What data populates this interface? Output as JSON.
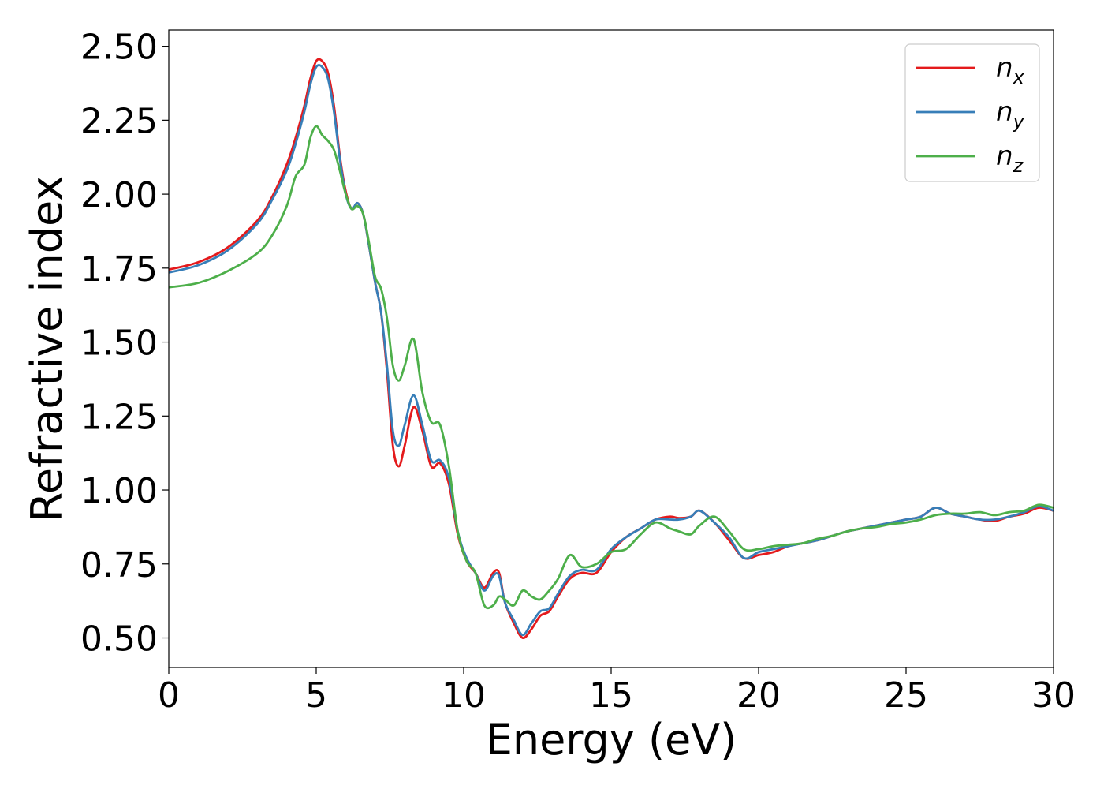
{
  "chart_data": {
    "type": "line",
    "title": "",
    "xlabel": "Energy (eV)",
    "ylabel": "Refractive index",
    "xlim": [
      0,
      30
    ],
    "ylim": [
      0.4,
      2.555
    ],
    "xticks": [
      0,
      5,
      10,
      15,
      20,
      25,
      30
    ],
    "xtick_labels": [
      "0",
      "5",
      "10",
      "15",
      "20",
      "25",
      "30"
    ],
    "yticks": [
      0.5,
      0.75,
      1.0,
      1.25,
      1.5,
      1.75,
      2.0,
      2.25,
      2.5
    ],
    "ytick_labels": [
      "0.50",
      "0.75",
      "1.00",
      "1.25",
      "1.50",
      "1.75",
      "2.00",
      "2.25",
      "2.50"
    ],
    "grid": false,
    "legend_position": "top-right",
    "series": [
      {
        "name": "n_x",
        "legend_main": "n",
        "legend_sub": "x",
        "color": "#e41a1c",
        "x": [
          0,
          1,
          2,
          3,
          3.5,
          4,
          4.3,
          4.6,
          4.8,
          5.0,
          5.2,
          5.4,
          5.6,
          5.8,
          6.0,
          6.2,
          6.4,
          6.6,
          6.8,
          7.0,
          7.2,
          7.4,
          7.6,
          7.8,
          8.0,
          8.3,
          8.6,
          8.9,
          9.2,
          9.5,
          9.8,
          10.1,
          10.4,
          10.7,
          11.0,
          11.2,
          11.4,
          11.7,
          12.0,
          12.3,
          12.6,
          12.9,
          13.2,
          13.6,
          14.0,
          14.5,
          15.0,
          15.5,
          16.0,
          16.5,
          17.0,
          17.3,
          17.7,
          18.0,
          18.5,
          19.0,
          19.5,
          20.0,
          20.5,
          21.0,
          21.5,
          22.0,
          22.5,
          23.0,
          23.5,
          24.0,
          24.5,
          25.0,
          25.5,
          26.0,
          26.5,
          27.0,
          27.5,
          28.0,
          28.5,
          29.0,
          29.5,
          30.0
        ],
        "y": [
          1.745,
          1.77,
          1.82,
          1.91,
          1.99,
          2.1,
          2.19,
          2.3,
          2.39,
          2.45,
          2.45,
          2.41,
          2.3,
          2.13,
          2.01,
          1.95,
          1.97,
          1.93,
          1.82,
          1.7,
          1.6,
          1.4,
          1.15,
          1.08,
          1.15,
          1.28,
          1.2,
          1.08,
          1.09,
          1.02,
          0.85,
          0.76,
          0.72,
          0.67,
          0.72,
          0.72,
          0.62,
          0.55,
          0.5,
          0.53,
          0.575,
          0.59,
          0.64,
          0.7,
          0.72,
          0.72,
          0.79,
          0.84,
          0.87,
          0.9,
          0.91,
          0.905,
          0.91,
          0.93,
          0.89,
          0.83,
          0.77,
          0.78,
          0.79,
          0.81,
          0.82,
          0.83,
          0.845,
          0.86,
          0.87,
          0.88,
          0.89,
          0.9,
          0.91,
          0.94,
          0.92,
          0.91,
          0.9,
          0.895,
          0.91,
          0.92,
          0.94,
          0.93
        ]
      },
      {
        "name": "n_y",
        "legend_main": "n",
        "legend_sub": "y",
        "color": "#377eb8",
        "x": [
          0,
          1,
          2,
          3,
          3.5,
          4,
          4.3,
          4.6,
          4.8,
          5.0,
          5.2,
          5.4,
          5.6,
          5.8,
          6.0,
          6.2,
          6.4,
          6.6,
          6.8,
          7.0,
          7.2,
          7.4,
          7.6,
          7.8,
          8.0,
          8.3,
          8.6,
          8.9,
          9.2,
          9.5,
          9.8,
          10.1,
          10.4,
          10.7,
          11.0,
          11.2,
          11.4,
          11.7,
          12.0,
          12.3,
          12.6,
          12.9,
          13.2,
          13.6,
          14.0,
          14.5,
          15.0,
          15.5,
          16.0,
          16.5,
          17.0,
          17.3,
          17.7,
          18.0,
          18.5,
          19.0,
          19.5,
          20.0,
          20.5,
          21.0,
          21.5,
          22.0,
          22.5,
          23.0,
          23.5,
          24.0,
          24.5,
          25.0,
          25.5,
          26.0,
          26.5,
          27.0,
          27.5,
          28.0,
          28.5,
          29.0,
          29.5,
          30.0
        ],
        "y": [
          1.735,
          1.76,
          1.81,
          1.9,
          1.98,
          2.08,
          2.17,
          2.28,
          2.37,
          2.43,
          2.43,
          2.39,
          2.28,
          2.12,
          2.0,
          1.95,
          1.97,
          1.93,
          1.82,
          1.7,
          1.6,
          1.42,
          1.2,
          1.15,
          1.22,
          1.32,
          1.22,
          1.1,
          1.1,
          1.04,
          0.86,
          0.77,
          0.72,
          0.66,
          0.71,
          0.71,
          0.62,
          0.56,
          0.51,
          0.55,
          0.59,
          0.6,
          0.65,
          0.71,
          0.73,
          0.73,
          0.8,
          0.84,
          0.87,
          0.9,
          0.9,
          0.9,
          0.91,
          0.93,
          0.89,
          0.84,
          0.77,
          0.79,
          0.8,
          0.81,
          0.82,
          0.83,
          0.845,
          0.86,
          0.87,
          0.88,
          0.89,
          0.9,
          0.91,
          0.94,
          0.92,
          0.91,
          0.9,
          0.9,
          0.91,
          0.925,
          0.945,
          0.93
        ]
      },
      {
        "name": "n_z",
        "legend_main": "n",
        "legend_sub": "z",
        "color": "#4daf4a",
        "x": [
          0,
          1,
          2,
          3,
          3.5,
          4,
          4.3,
          4.6,
          4.8,
          5.0,
          5.2,
          5.4,
          5.6,
          5.8,
          6.0,
          6.2,
          6.4,
          6.6,
          6.8,
          7.0,
          7.2,
          7.4,
          7.6,
          7.8,
          8.0,
          8.3,
          8.6,
          8.9,
          9.2,
          9.5,
          9.8,
          10.1,
          10.4,
          10.7,
          11.0,
          11.2,
          11.4,
          11.7,
          12.0,
          12.3,
          12.6,
          12.9,
          13.2,
          13.6,
          14.0,
          14.5,
          15.0,
          15.5,
          16.0,
          16.5,
          17.0,
          17.3,
          17.7,
          18.0,
          18.5,
          19.0,
          19.5,
          20.0,
          20.5,
          21.0,
          21.5,
          22.0,
          22.5,
          23.0,
          23.5,
          24.0,
          24.5,
          25.0,
          25.5,
          26.0,
          26.5,
          27.0,
          27.5,
          28.0,
          28.5,
          29.0,
          29.5,
          30.0
        ],
        "y": [
          1.685,
          1.7,
          1.74,
          1.8,
          1.86,
          1.96,
          2.06,
          2.1,
          2.19,
          2.23,
          2.2,
          2.18,
          2.15,
          2.08,
          2.0,
          1.95,
          1.96,
          1.93,
          1.83,
          1.72,
          1.68,
          1.58,
          1.42,
          1.37,
          1.42,
          1.51,
          1.33,
          1.23,
          1.22,
          1.08,
          0.86,
          0.76,
          0.72,
          0.61,
          0.61,
          0.64,
          0.63,
          0.61,
          0.66,
          0.64,
          0.63,
          0.66,
          0.7,
          0.78,
          0.74,
          0.75,
          0.79,
          0.8,
          0.85,
          0.89,
          0.87,
          0.86,
          0.85,
          0.88,
          0.91,
          0.86,
          0.8,
          0.8,
          0.81,
          0.815,
          0.82,
          0.835,
          0.845,
          0.86,
          0.87,
          0.875,
          0.885,
          0.89,
          0.9,
          0.915,
          0.92,
          0.92,
          0.925,
          0.915,
          0.925,
          0.93,
          0.95,
          0.94
        ]
      }
    ]
  }
}
